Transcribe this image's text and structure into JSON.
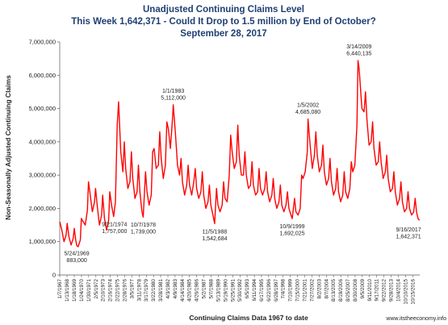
{
  "chart_data": {
    "type": "line",
    "title": "Unadjusted Continuing Claims Level",
    "subtitle": "This Week 1,642,371 - Could It Drop to 1.5 million by End of October?",
    "date_line": "September 28, 2017",
    "ylabel": "Non-Seasonally Adjusted Continuing Claims",
    "xlabel": "Continuing Claims Data 1967 to date",
    "credit": "www.itstheeconomy.info",
    "ylim": [
      0,
      7000000
    ],
    "y_ticks": [
      {
        "value": 0,
        "label": "0"
      },
      {
        "value": 1000000,
        "label": "1,000,000"
      },
      {
        "value": 2000000,
        "label": "2,000,000"
      },
      {
        "value": 3000000,
        "label": "3,000,000"
      },
      {
        "value": 4000000,
        "label": "4,000,000"
      },
      {
        "value": 5000000,
        "label": "5,000,000"
      },
      {
        "value": 6000000,
        "label": "6,000,000"
      },
      {
        "value": 7000000,
        "label": "7,000,000"
      }
    ],
    "x_range": [
      1967.0,
      2017.75
    ],
    "x_ticks": [
      {
        "value": 1967.0,
        "label": "1/7/1967"
      },
      {
        "value": 1968.03,
        "label": "1/13/1968"
      },
      {
        "value": 1969.05,
        "label": "1/18/1969"
      },
      {
        "value": 1970.07,
        "label": "1/24/1970"
      },
      {
        "value": 1971.08,
        "label": "1/30/1971"
      },
      {
        "value": 1972.1,
        "label": "2/5/1972"
      },
      {
        "value": 1973.11,
        "label": "2/10/1973"
      },
      {
        "value": 1974.13,
        "label": "2/16/1974"
      },
      {
        "value": 1975.14,
        "label": "2/22/1975"
      },
      {
        "value": 1976.16,
        "label": "2/28/1976"
      },
      {
        "value": 1977.17,
        "label": "3/5/1977"
      },
      {
        "value": 1978.19,
        "label": "3/11/1978"
      },
      {
        "value": 1979.2,
        "label": "3/17/1979"
      },
      {
        "value": 1980.22,
        "label": "3/22/1980"
      },
      {
        "value": 1981.23,
        "label": "3/28/1981"
      },
      {
        "value": 1982.25,
        "label": "4/3/1982"
      },
      {
        "value": 1983.26,
        "label": "4/9/1983"
      },
      {
        "value": 1984.28,
        "label": "4/14/1984"
      },
      {
        "value": 1985.29,
        "label": "4/20/1985"
      },
      {
        "value": 1986.31,
        "label": "4/26/1986"
      },
      {
        "value": 1987.32,
        "label": "5/2/1987"
      },
      {
        "value": 1988.34,
        "label": "5/7/1988"
      },
      {
        "value": 1989.35,
        "label": "5/13/1989"
      },
      {
        "value": 1990.37,
        "label": "5/19/1990"
      },
      {
        "value": 1991.38,
        "label": "5/25/1991"
      },
      {
        "value": 1992.4,
        "label": "5/30/1992"
      },
      {
        "value": 1993.41,
        "label": "6/5/1993"
      },
      {
        "value": 1994.43,
        "label": "6/11/1994"
      },
      {
        "value": 1995.44,
        "label": "6/17/1995"
      },
      {
        "value": 1996.46,
        "label": "6/22/1996"
      },
      {
        "value": 1997.47,
        "label": "6/28/1997"
      },
      {
        "value": 1998.49,
        "label": "7/4/1998"
      },
      {
        "value": 1999.5,
        "label": "7/10/1999"
      },
      {
        "value": 2000.52,
        "label": "7/15/2000"
      },
      {
        "value": 2001.53,
        "label": "7/21/2001"
      },
      {
        "value": 2002.55,
        "label": "7/27/2002"
      },
      {
        "value": 2003.56,
        "label": "8/2/2003"
      },
      {
        "value": 2004.58,
        "label": "8/7/2004"
      },
      {
        "value": 2005.59,
        "label": "8/13/2005"
      },
      {
        "value": 2006.61,
        "label": "8/19/2006"
      },
      {
        "value": 2007.62,
        "label": "8/25/2007"
      },
      {
        "value": 2008.64,
        "label": "8/30/2008"
      },
      {
        "value": 2009.65,
        "label": "9/5/2009"
      },
      {
        "value": 2010.67,
        "label": "9/11/2010"
      },
      {
        "value": 2011.68,
        "label": "9/17/2011"
      },
      {
        "value": 2012.7,
        "label": "9/22/2012"
      },
      {
        "value": 2013.71,
        "label": "9/28/2013"
      },
      {
        "value": 2014.73,
        "label": "10/4/2014"
      },
      {
        "value": 2015.74,
        "label": "10/10/2015"
      },
      {
        "value": 2016.76,
        "label": "10/15/2016"
      }
    ],
    "series": [
      {
        "color": "#ff0000",
        "x": [
          1967.0,
          1967.3,
          1967.6,
          1967.9,
          1968.05,
          1968.3,
          1968.6,
          1968.9,
          1969.05,
          1969.25,
          1969.4,
          1969.6,
          1969.9,
          1970.05,
          1970.3,
          1970.6,
          1970.9,
          1971.05,
          1971.3,
          1971.6,
          1971.9,
          1972.05,
          1972.3,
          1972.6,
          1972.9,
          1973.05,
          1973.3,
          1973.6,
          1973.9,
          1974.05,
          1974.3,
          1974.6,
          1974.85,
          1975.1,
          1975.3,
          1975.6,
          1975.9,
          1976.1,
          1976.3,
          1976.6,
          1976.9,
          1977.1,
          1977.3,
          1977.6,
          1977.9,
          1978.1,
          1978.3,
          1978.6,
          1978.77,
          1979.1,
          1979.3,
          1979.6,
          1979.9,
          1980.1,
          1980.3,
          1980.6,
          1980.9,
          1981.1,
          1981.3,
          1981.6,
          1981.9,
          1982.1,
          1982.3,
          1982.6,
          1982.9,
          1983.0,
          1983.3,
          1983.6,
          1983.9,
          1984.1,
          1984.3,
          1984.6,
          1984.9,
          1985.1,
          1985.3,
          1985.6,
          1985.9,
          1986.1,
          1986.3,
          1986.6,
          1986.9,
          1987.1,
          1987.3,
          1987.6,
          1987.9,
          1988.1,
          1988.3,
          1988.6,
          1988.84,
          1989.1,
          1989.3,
          1989.6,
          1989.9,
          1990.1,
          1990.3,
          1990.6,
          1990.9,
          1991.1,
          1991.3,
          1991.6,
          1991.9,
          1992.1,
          1992.3,
          1992.6,
          1992.9,
          1993.1,
          1993.3,
          1993.6,
          1993.9,
          1994.1,
          1994.3,
          1994.6,
          1994.9,
          1995.1,
          1995.3,
          1995.6,
          1995.9,
          1996.1,
          1996.3,
          1996.6,
          1996.9,
          1997.1,
          1997.3,
          1997.6,
          1997.9,
          1998.1,
          1998.3,
          1998.6,
          1998.9,
          1999.1,
          1999.3,
          1999.6,
          1999.77,
          2000.1,
          2000.3,
          2000.6,
          2000.9,
          2001.1,
          2001.3,
          2001.6,
          2001.9,
          2002.0,
          2002.3,
          2002.6,
          2002.9,
          2003.1,
          2003.3,
          2003.6,
          2003.9,
          2004.1,
          2004.3,
          2004.6,
          2004.9,
          2005.1,
          2005.3,
          2005.6,
          2005.9,
          2006.1,
          2006.3,
          2006.6,
          2006.9,
          2007.1,
          2007.3,
          2007.6,
          2007.9,
          2008.1,
          2008.3,
          2008.6,
          2008.9,
          2009.05,
          2009.2,
          2009.4,
          2009.6,
          2009.9,
          2010.1,
          2010.3,
          2010.6,
          2010.9,
          2011.1,
          2011.3,
          2011.6,
          2011.9,
          2012.1,
          2012.3,
          2012.6,
          2012.9,
          2013.1,
          2013.3,
          2013.6,
          2013.9,
          2014.1,
          2014.3,
          2014.6,
          2014.9,
          2015.1,
          2015.3,
          2015.6,
          2015.9,
          2016.1,
          2016.3,
          2016.6,
          2016.9,
          2017.1,
          2017.3,
          2017.5,
          2017.71
        ],
        "y": [
          1600000,
          1350000,
          1000000,
          1200000,
          1550000,
          1150000,
          900000,
          1100000,
          1400000,
          1050000,
          883000,
          850000,
          1050000,
          1700000,
          1600000,
          1500000,
          1950000,
          2800000,
          2400000,
          1900000,
          2200000,
          2600000,
          2050000,
          1500000,
          1800000,
          2400000,
          1700000,
          1350000,
          1650000,
          2500000,
          2100000,
          1757000,
          2200000,
          4500000,
          5200000,
          3700000,
          3100000,
          4000000,
          3200000,
          2600000,
          2800000,
          3700000,
          2900000,
          2300000,
          2500000,
          3300000,
          2500000,
          1900000,
          1739000,
          3100000,
          2500000,
          2100000,
          2400000,
          3700000,
          3800000,
          3200000,
          3300000,
          4300000,
          3500000,
          2900000,
          3300000,
          4600000,
          4400000,
          3800000,
          4700000,
          5112000,
          4300000,
          3300000,
          3000000,
          3500000,
          2800000,
          2400000,
          2700000,
          3300000,
          2700000,
          2400000,
          2800000,
          3200000,
          2600000,
          2300000,
          2500000,
          3100000,
          2400000,
          2000000,
          2200000,
          2700000,
          2100000,
          1800000,
          1542684,
          2600000,
          2100000,
          1900000,
          2100000,
          2800000,
          2300000,
          2200000,
          3000000,
          4200000,
          3700000,
          3200000,
          3400000,
          4500000,
          3600000,
          3000000,
          3000000,
          3700000,
          3000000,
          2600000,
          2700000,
          3400000,
          2700000,
          2400000,
          2500000,
          3200000,
          2600000,
          2400000,
          2600000,
          3100000,
          2500000,
          2200000,
          2400000,
          2900000,
          2300000,
          2000000,
          2200000,
          2700000,
          2100000,
          1900000,
          2100000,
          2500000,
          2000000,
          1800000,
          1692025,
          2300000,
          1900000,
          1800000,
          2000000,
          3000000,
          2900000,
          3100000,
          3700000,
          4685080,
          3900000,
          3200000,
          3600000,
          4300000,
          3600000,
          3100000,
          3300000,
          3900000,
          3100000,
          2700000,
          2900000,
          3500000,
          2800000,
          2400000,
          2600000,
          3200000,
          2500000,
          2200000,
          2400000,
          3100000,
          2500000,
          2300000,
          2600000,
          3400000,
          3100000,
          3300000,
          4500000,
          6440135,
          6200000,
          5600000,
          5000000,
          4900000,
          5500000,
          4700000,
          3900000,
          4000000,
          4600000,
          3800000,
          3300000,
          3400000,
          4000000,
          3400000,
          2900000,
          3100000,
          3600000,
          2900000,
          2500000,
          2600000,
          3100000,
          2500000,
          2100000,
          2300000,
          2800000,
          2200000,
          1900000,
          2000000,
          2500000,
          2000000,
          1800000,
          1900000,
          2300000,
          1900000,
          1700000,
          1642371
        ]
      }
    ],
    "annotations": [
      {
        "x": 1969.4,
        "y": 883000,
        "date": "5/24/1969",
        "value": "883,000",
        "color": "#cc0000",
        "placement": "below"
      },
      {
        "x": 1974.72,
        "y": 1757000,
        "date": "9/21/1974",
        "value": "1,757,000",
        "color": "#222222",
        "placement": "below"
      },
      {
        "x": 1978.77,
        "y": 1739000,
        "date": "10/7/1978",
        "value": "1,739,000",
        "color": "#222222",
        "placement": "below"
      },
      {
        "x": 1983.0,
        "y": 5112000,
        "date": "1/1/1983",
        "value": "5,112,000",
        "color": "#222222",
        "placement": "above"
      },
      {
        "x": 1988.84,
        "y": 1542684,
        "date": "11/5/1988",
        "value": "1,542,684",
        "color": "#222222",
        "placement": "below"
      },
      {
        "x": 1999.77,
        "y": 1692025,
        "date": "10/9/1999",
        "value": "1,692,025",
        "color": "#222222",
        "placement": "below"
      },
      {
        "x": 2002.0,
        "y": 4685080,
        "date": "1/5/2002",
        "value": "4,685,080",
        "color": "#222222",
        "placement": "above"
      },
      {
        "x": 2009.2,
        "y": 6440135,
        "date": "3/14/2009",
        "value": "6,440,135",
        "color": "#222222",
        "placement": "above"
      },
      {
        "x": 2017.71,
        "y": 1642371,
        "date": "9/16/2017",
        "value": "1,642,371",
        "color": "#222222",
        "placement": "below-left"
      }
    ]
  }
}
